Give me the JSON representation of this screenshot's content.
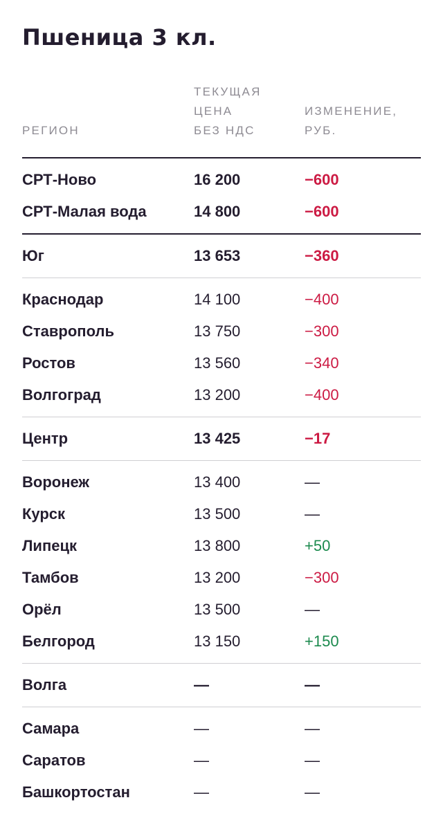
{
  "title": "Пшеница 3 кл.",
  "header": {
    "region": "РЕГИОН",
    "price_line1": "ТЕКУЩАЯ",
    "price_line2": "ЦЕНА",
    "price_line3": "БЕЗ НДС",
    "change_line1": "ИЗМЕНЕНИЕ,",
    "change_line2": "РУБ."
  },
  "colors": {
    "negative": "#cc1a43",
    "positive": "#1c8a4e",
    "text": "#241d2f",
    "header_text": "#8e8b93"
  },
  "groups": [
    {
      "rows": [
        {
          "region": "СРТ-Ново",
          "price": "16 200",
          "change": "−600",
          "bold": true,
          "trend": "neg"
        },
        {
          "region": "СРТ-Малая вода",
          "price": "14 800",
          "change": "−600",
          "bold": true,
          "trend": "neg"
        }
      ]
    },
    {
      "rows": [
        {
          "region": "Юг",
          "price": "13 653",
          "change": "−360",
          "bold": true,
          "trend": "neg"
        }
      ]
    },
    {
      "rows": [
        {
          "region": "Краснодар",
          "price": "14 100",
          "change": "−400",
          "bold": false,
          "trend": "neg"
        },
        {
          "region": "Ставрополь",
          "price": "13 750",
          "change": "−300",
          "bold": false,
          "trend": "neg"
        },
        {
          "region": "Ростов",
          "price": "13 560",
          "change": "−340",
          "bold": false,
          "trend": "neg"
        },
        {
          "region": "Волгоград",
          "price": "13 200",
          "change": "−400",
          "bold": false,
          "trend": "neg"
        }
      ]
    },
    {
      "rows": [
        {
          "region": "Центр",
          "price": "13 425",
          "change": "−17",
          "bold": true,
          "trend": "neg"
        }
      ]
    },
    {
      "rows": [
        {
          "region": "Воронеж",
          "price": "13 400",
          "change": "—",
          "bold": false,
          "trend": "none"
        },
        {
          "region": "Курск",
          "price": "13 500",
          "change": "—",
          "bold": false,
          "trend": "none"
        },
        {
          "region": "Липецк",
          "price": "13 800",
          "change": "+50",
          "bold": false,
          "trend": "pos"
        },
        {
          "region": "Тамбов",
          "price": "13 200",
          "change": "−300",
          "bold": false,
          "trend": "neg"
        },
        {
          "region": "Орёл",
          "price": "13 500",
          "change": "—",
          "bold": false,
          "trend": "none"
        },
        {
          "region": "Белгород",
          "price": "13 150",
          "change": "+150",
          "bold": false,
          "trend": "pos"
        }
      ]
    },
    {
      "rows": [
        {
          "region": "Волга",
          "price": "—",
          "change": "—",
          "bold": true,
          "trend": "none"
        }
      ]
    },
    {
      "rows": [
        {
          "region": "Самара",
          "price": "—",
          "change": "—",
          "bold": false,
          "trend": "none"
        },
        {
          "region": "Саратов",
          "price": "—",
          "change": "—",
          "bold": false,
          "trend": "none"
        },
        {
          "region": "Башкортостан",
          "price": "—",
          "change": "—",
          "bold": false,
          "trend": "none"
        }
      ]
    }
  ]
}
